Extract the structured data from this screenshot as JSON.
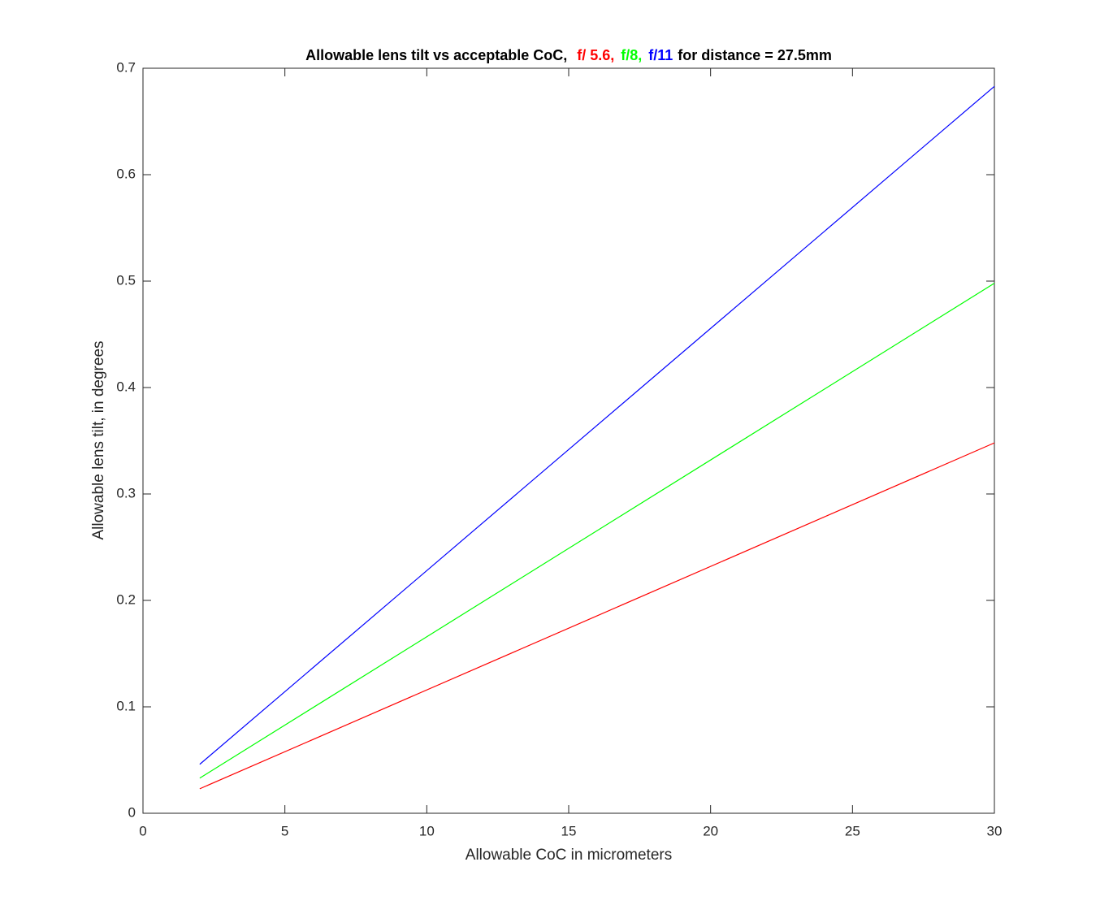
{
  "chart_data": {
    "type": "line",
    "title_prefix": "Allowable lens tilt vs acceptable CoC,",
    "title_suffix": "for distance = 27.5mm",
    "xlabel": "Allowable CoC in micrometers",
    "ylabel": "Allowable lens tilt, in degrees",
    "x": [
      2,
      30
    ],
    "series": [
      {
        "name": "f/ 5.6,",
        "color": "#ff0000",
        "values": [
          0.023,
          0.348
        ]
      },
      {
        "name": "f/8,",
        "color": "#00ff00",
        "values": [
          0.033,
          0.498
        ]
      },
      {
        "name": "f/11",
        "color": "#0000ff",
        "values": [
          0.046,
          0.683
        ]
      }
    ],
    "xlim": [
      0,
      30
    ],
    "xticks": [
      0,
      5,
      10,
      15,
      20,
      25,
      30
    ],
    "ylim": [
      0,
      0.7
    ],
    "yticks": [
      0,
      0.1,
      0.2,
      0.3,
      0.4,
      0.5,
      0.6,
      0.7
    ],
    "grid": false
  }
}
